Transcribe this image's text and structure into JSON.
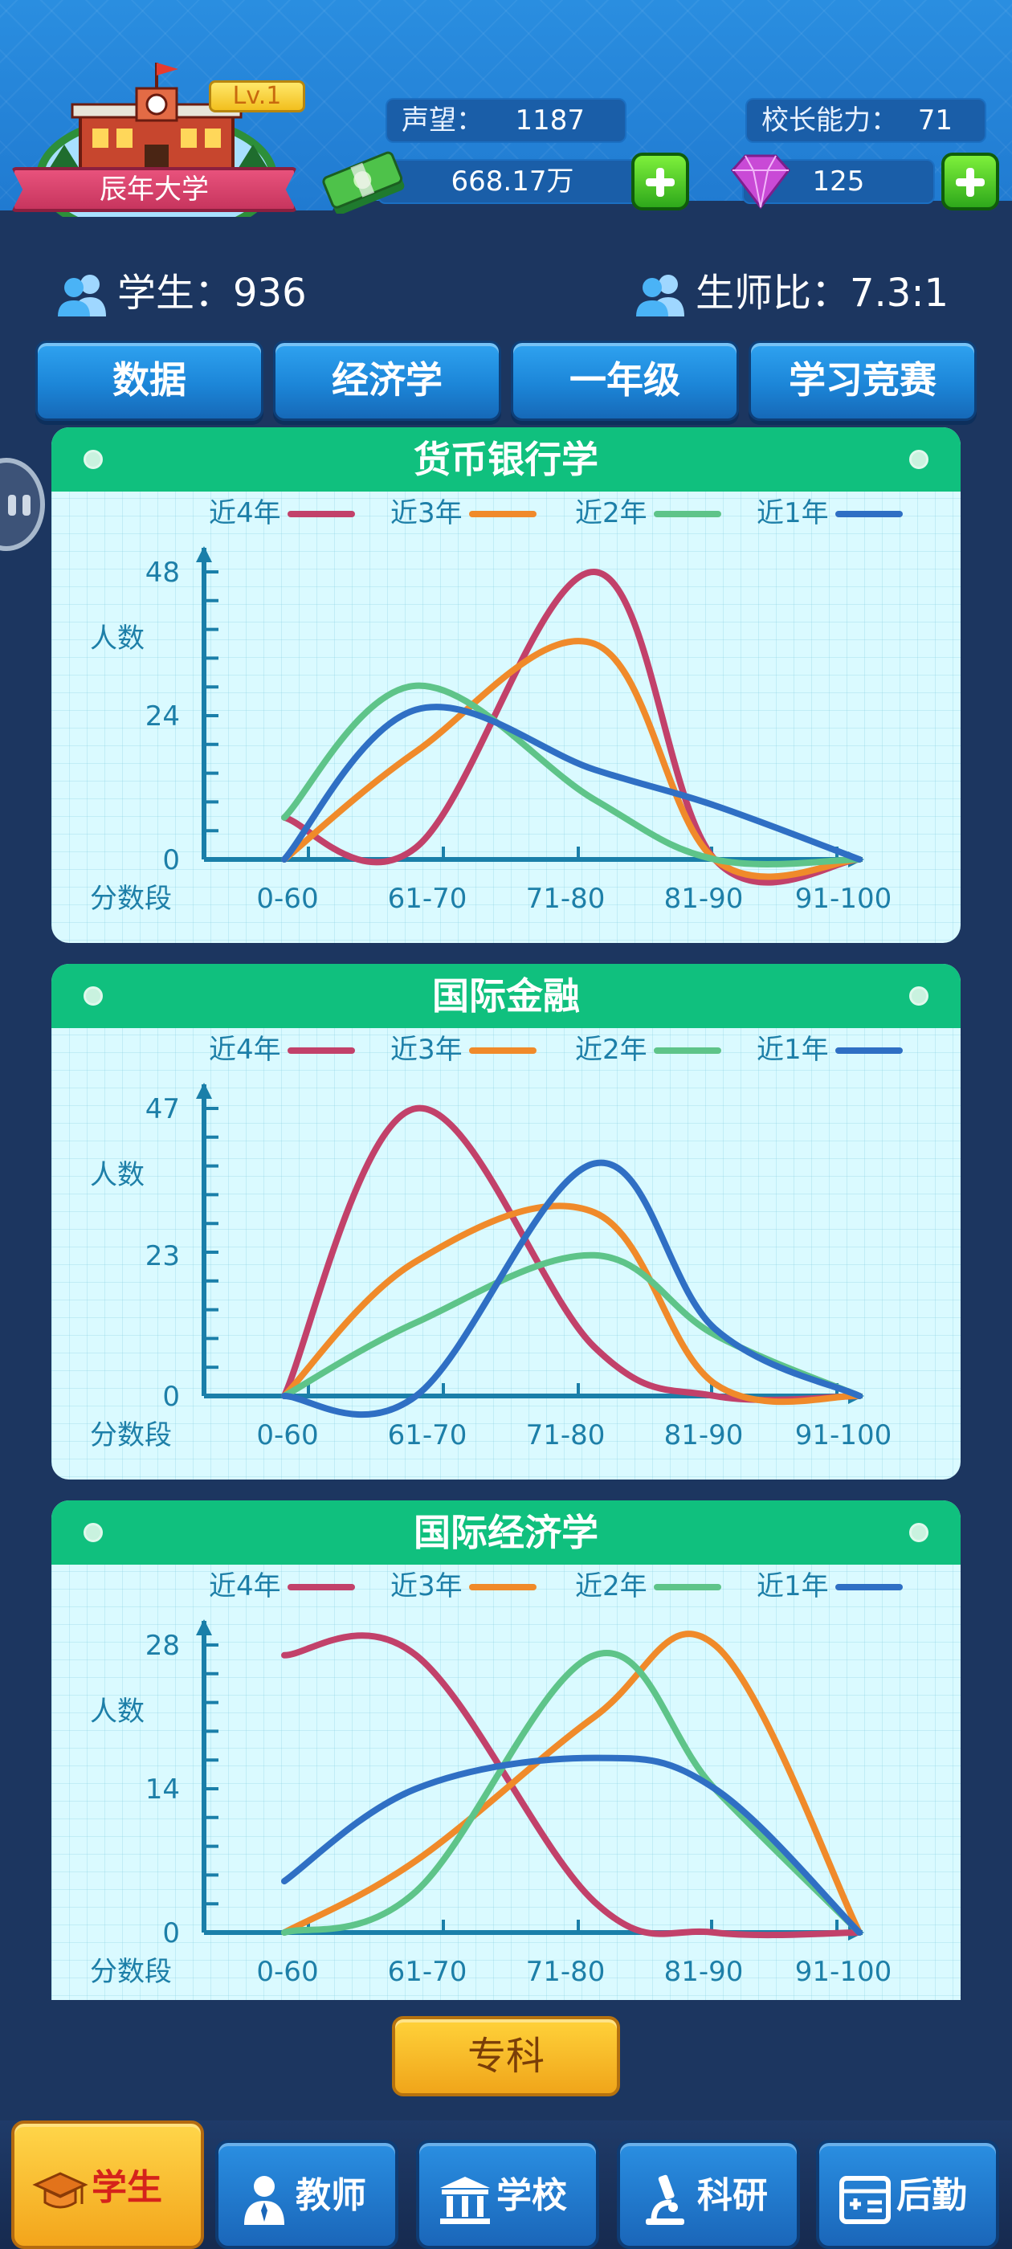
{
  "header": {
    "school_name": "辰年大学",
    "level": "Lv.1",
    "reputation_label": "声望：",
    "reputation_value": "1187",
    "ability_label": "校长能力：",
    "ability_value": "71",
    "money_value": "668.17万",
    "gems_value": "125"
  },
  "stats": {
    "students": "学生：936",
    "ratio": "生师比：7.3:1"
  },
  "tabs": [
    "数据",
    "经济学",
    "一年级",
    "学习竞赛"
  ],
  "legend_colors": {
    "近4年": "#c2416a",
    "近3年": "#f08a2a",
    "近2年": "#5ec489",
    "近1年": "#2f6fc4"
  },
  "chart_data": [
    {
      "type": "line",
      "title": "货币银行学",
      "ylabel": "人数",
      "xlabel": "分数段",
      "categories": [
        "0-60",
        "61-70",
        "71-80",
        "81-90",
        "91-100"
      ],
      "y_ticks": [
        "0",
        "24",
        "48"
      ],
      "ylim": [
        0,
        48
      ],
      "series": [
        {
          "name": "近4年",
          "values": [
            7,
            2,
            48,
            0,
            0
          ]
        },
        {
          "name": "近3年",
          "values": [
            0,
            18,
            36,
            0,
            0
          ]
        },
        {
          "name": "近2年",
          "values": [
            7,
            29,
            10,
            0,
            0
          ]
        },
        {
          "name": "近1年",
          "values": [
            0,
            25,
            15,
            9,
            0
          ]
        }
      ]
    },
    {
      "type": "line",
      "title": "国际金融",
      "ylabel": "人数",
      "xlabel": "分数段",
      "categories": [
        "0-60",
        "61-70",
        "71-80",
        "81-90",
        "91-100"
      ],
      "y_ticks": [
        "0",
        "23",
        "47"
      ],
      "ylim": [
        0,
        47
      ],
      "series": [
        {
          "name": "近4年",
          "values": [
            0,
            47,
            8,
            0,
            0
          ]
        },
        {
          "name": "近3年",
          "values": [
            0,
            22,
            30,
            2,
            0
          ]
        },
        {
          "name": "近2年",
          "values": [
            0,
            12,
            23,
            10,
            0
          ]
        },
        {
          "name": "近1年",
          "values": [
            0,
            0,
            38,
            11,
            0
          ]
        }
      ]
    },
    {
      "type": "line",
      "title": "国际经济学",
      "ylabel": "人数",
      "xlabel": "分数段",
      "categories": [
        "0-60",
        "61-70",
        "71-80",
        "81-90",
        "91-100"
      ],
      "y_ticks": [
        "0",
        "14",
        "28"
      ],
      "ylim": [
        0,
        28
      ],
      "series": [
        {
          "name": "近4年",
          "values": [
            27,
            27,
            3,
            0,
            0
          ]
        },
        {
          "name": "近3年",
          "values": [
            0,
            7,
            21,
            28,
            0
          ]
        },
        {
          "name": "近2年",
          "values": [
            0,
            4,
            27,
            14,
            0
          ]
        },
        {
          "name": "近1年",
          "values": [
            5,
            14,
            17,
            14,
            0
          ]
        }
      ]
    }
  ],
  "specialty_button": "专科",
  "nav": [
    {
      "label": "学生",
      "icon": "graduation-cap-icon"
    },
    {
      "label": "教师",
      "icon": "teacher-icon"
    },
    {
      "label": "学校",
      "icon": "school-building-icon"
    },
    {
      "label": "科研",
      "icon": "microscope-icon"
    },
    {
      "label": "后勤",
      "icon": "logistics-board-icon"
    }
  ]
}
